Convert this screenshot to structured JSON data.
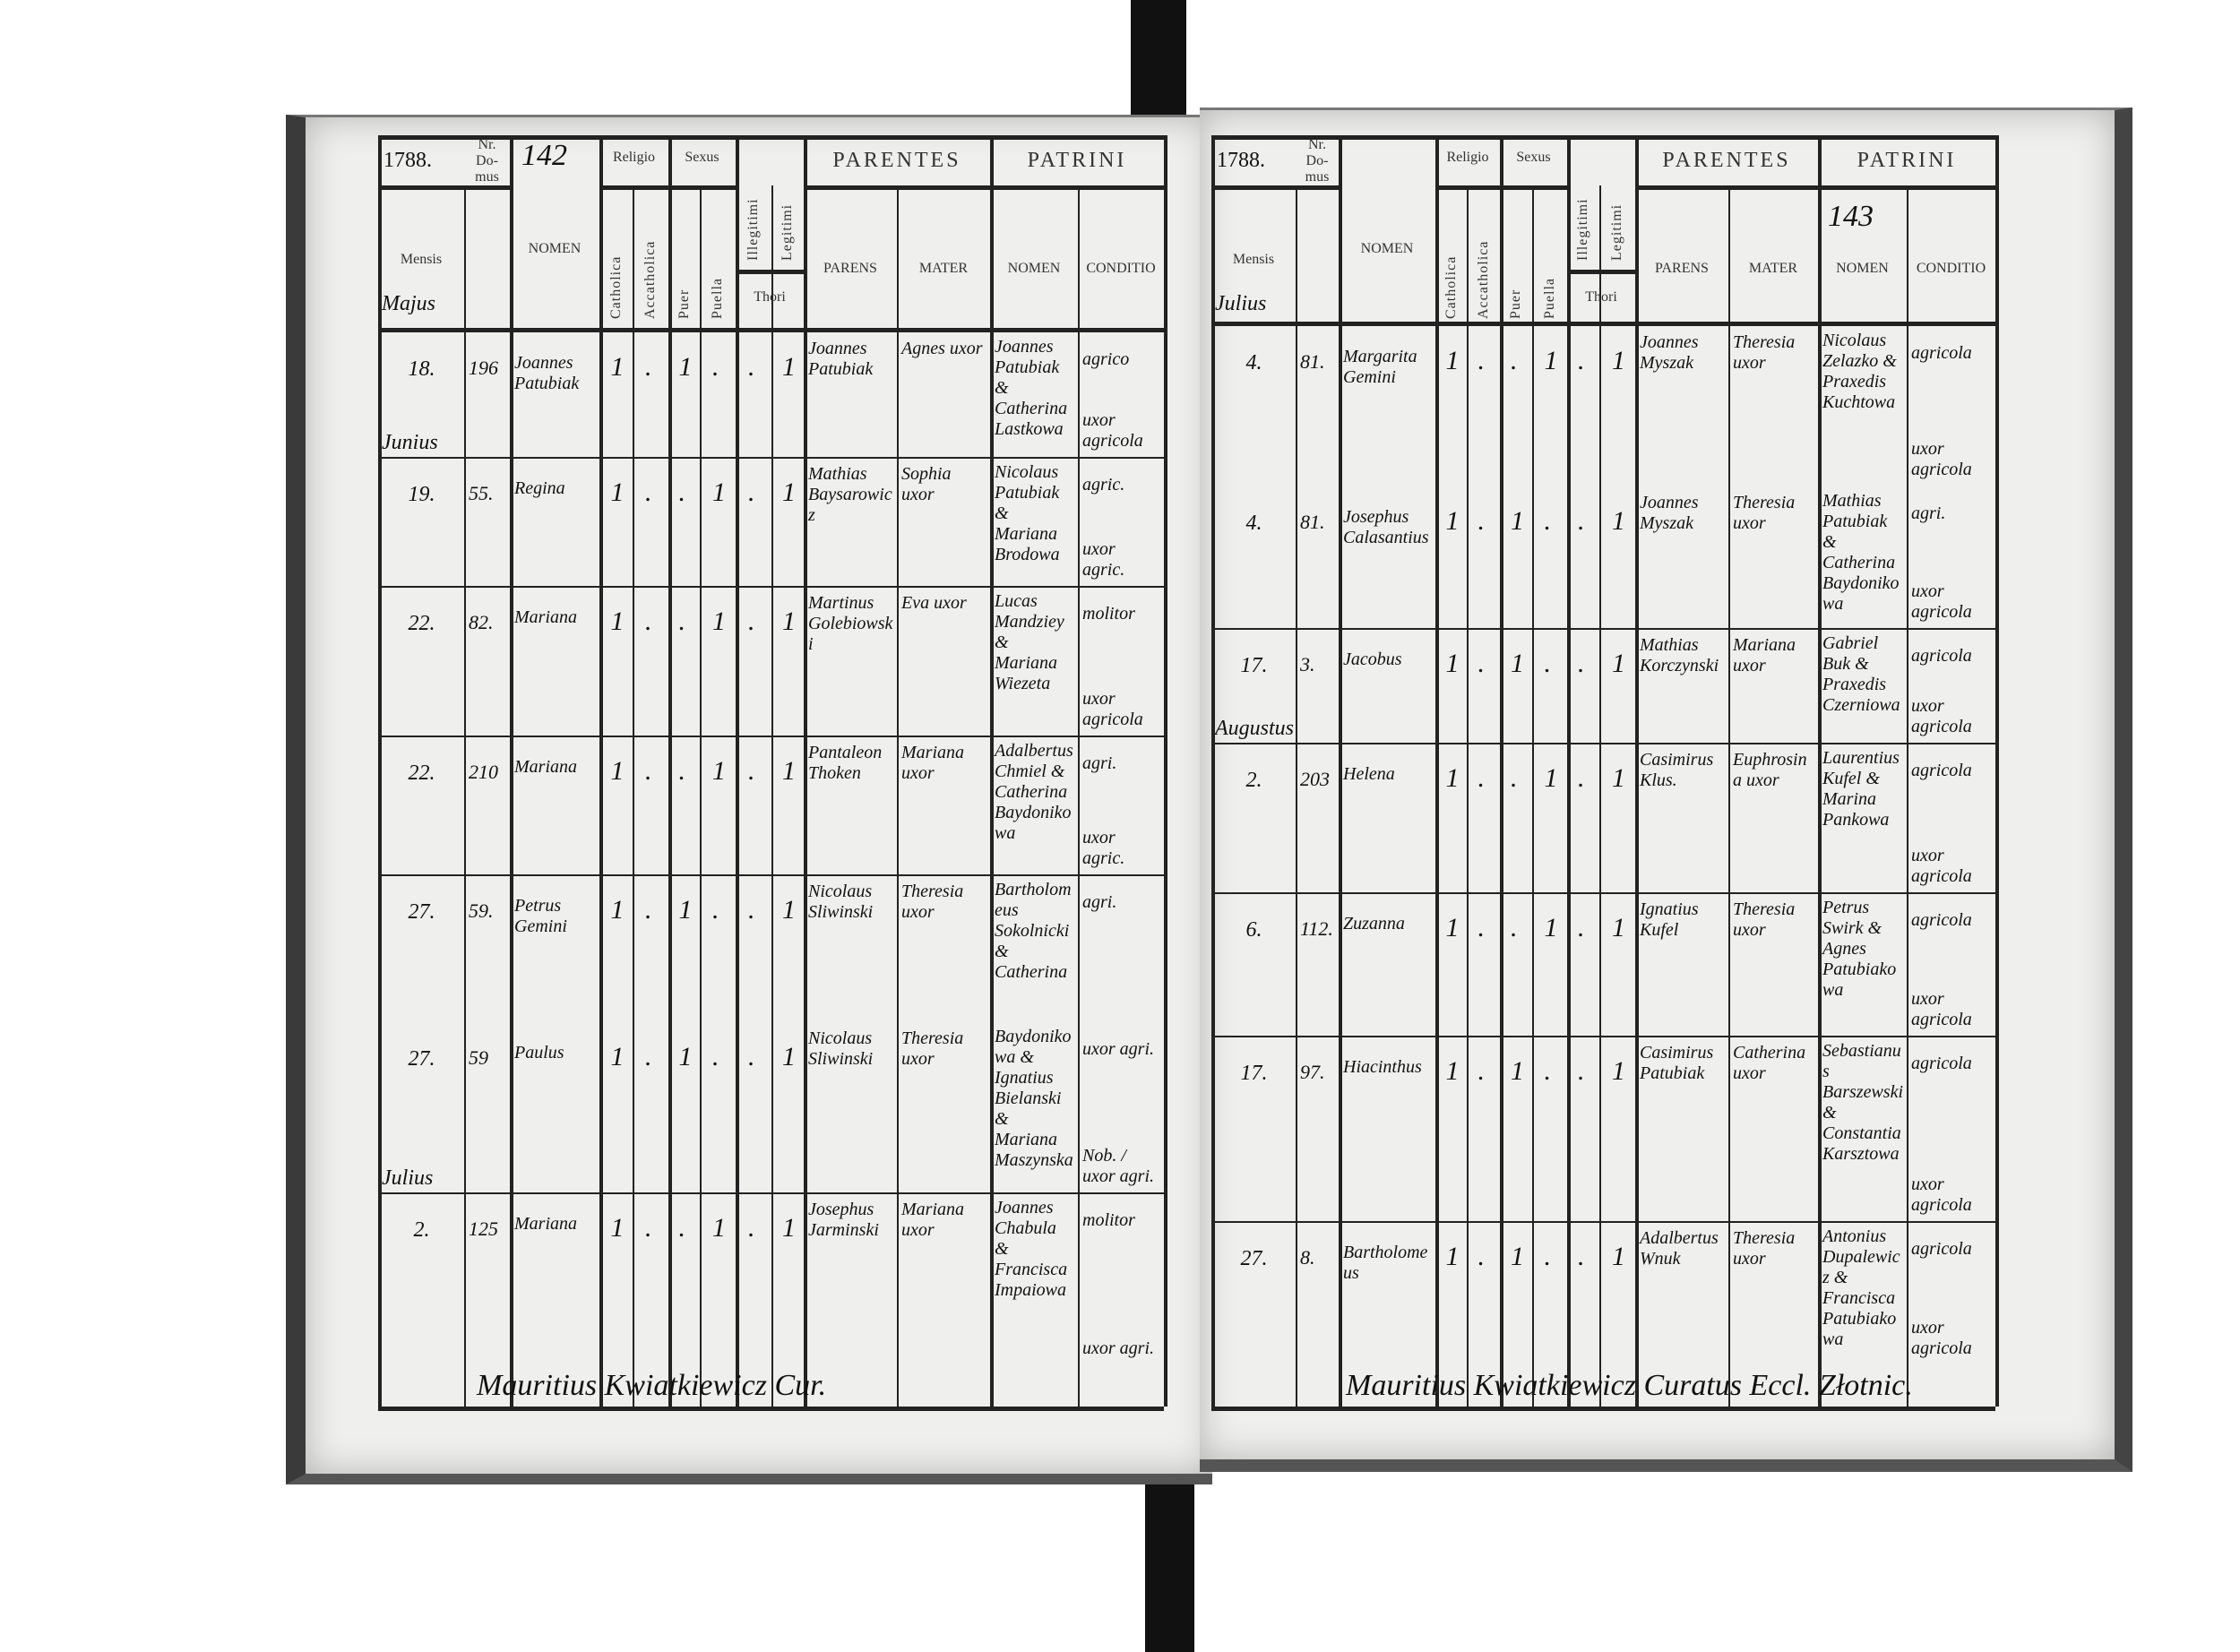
{
  "headers": {
    "nr_domus": "Nr. Do- mus",
    "nomen": "NOMEN",
    "mensis": "Mensis",
    "religio": "Religio",
    "sexus": "Sexus",
    "catholica": "Catholica",
    "accatholica": "Accatholica",
    "puer": "Puer",
    "puella": "Puella",
    "illegitimi": "Illegitimi",
    "legitimi": "Legitimi",
    "thori": "Thori",
    "parentes": "PARENTES",
    "patrini": "PATRINI",
    "parens": "PARENS",
    "mater": "MATER",
    "patrini_nomen": "NOMEN",
    "conditio": "CONDITIO"
  },
  "pages": [
    {
      "year": "1788.",
      "page_number": "142",
      "month_header": "Majus",
      "signature": "Mauritius Kwiatkiewicz Cur.",
      "entries": [
        {
          "month": "",
          "day": "18.",
          "domus": "196",
          "nomen": "Joannes Patubiak",
          "marks": [
            "1",
            ".",
            "1",
            ".",
            ".",
            "1"
          ],
          "parens": "Joannes Patubiak",
          "mater": "Agnes uxor",
          "patrini": "Joannes Patubiak & Catherina Lastkowa",
          "conditio": "agrico",
          "conditio2": "uxor agricola"
        },
        {
          "month": "Junius",
          "day": "19.",
          "domus": "55.",
          "nomen": "Regina",
          "marks": [
            "1",
            ".",
            ".",
            "1",
            ".",
            "1"
          ],
          "parens": "Mathias Baysarowicz",
          "mater": "Sophia uxor",
          "patrini": "Nicolaus Patubiak & Mariana Brodowa",
          "conditio": "agric.",
          "conditio2": "uxor agric."
        },
        {
          "month": "",
          "day": "22.",
          "domus": "82.",
          "nomen": "Mariana",
          "marks": [
            "1",
            ".",
            ".",
            "1",
            ".",
            "1"
          ],
          "parens": "Martinus Golebiowski",
          "mater": "Eva uxor",
          "patrini": "Lucas Mandziey & Mariana Wiezeta",
          "conditio": "molitor",
          "conditio2": "uxor agricola"
        },
        {
          "month": "",
          "day": "22.",
          "domus": "210",
          "nomen": "Mariana",
          "marks": [
            "1",
            ".",
            ".",
            "1",
            ".",
            "1"
          ],
          "parens": "Pantaleon Thoken",
          "mater": "Mariana uxor",
          "patrini": "Adalbertus Chmiel & Catherina Baydonikowa",
          "conditio": "agri.",
          "conditio2": "uxor agric."
        },
        {
          "month": "",
          "day": "27.",
          "domus": "59.",
          "nomen": "Petrus Gemini",
          "marks": [
            "1",
            ".",
            "1",
            ".",
            ".",
            "1"
          ],
          "parens": "Nicolaus Sliwinski",
          "mater": "Theresia uxor",
          "patrini": "Bartholomeus Sokolnicki & Catherina",
          "conditio": "agri.",
          "conditio2": ""
        },
        {
          "month": "",
          "day": "27.",
          "domus": "59",
          "nomen": "Paulus",
          "marks": [
            "1",
            ".",
            "1",
            ".",
            ".",
            "1"
          ],
          "parens": "Nicolaus Sliwinski",
          "mater": "Theresia uxor",
          "patrini": "Baydonikowa & Ignatius Bielanski & Mariana Maszynska",
          "conditio": "uxor agri.",
          "conditio2": "Nob. / uxor agri."
        },
        {
          "month": "Julius",
          "day": "2.",
          "domus": "125",
          "nomen": "Mariana",
          "marks": [
            "1",
            ".",
            ".",
            "1",
            ".",
            "1"
          ],
          "parens": "Josephus Jarminski",
          "mater": "Mariana uxor",
          "patrini": "Joannes Chabula & Francisca Impaiowa",
          "conditio": "molitor",
          "conditio2": "uxor agri."
        }
      ]
    },
    {
      "year": "1788.",
      "page_number": "143",
      "month_header": "Julius",
      "signature": "Mauritius Kwiatkiewicz Curatus Eccl. Złotnic.",
      "entries": [
        {
          "month": "",
          "day": "4.",
          "domus": "81.",
          "nomen": "Margarita Gemini",
          "marks": [
            "1",
            ".",
            ".",
            "1",
            ".",
            "1"
          ],
          "parens": "Joannes Myszak",
          "mater": "Theresia uxor",
          "patrini": "Nicolaus Zelazko & Praxedis Kuchtowa",
          "conditio": "agricola",
          "conditio2": "uxor agricola"
        },
        {
          "month": "",
          "day": "4.",
          "domus": "81.",
          "nomen": "Josephus Calasantius",
          "marks": [
            "1",
            ".",
            "1",
            ".",
            ".",
            "1"
          ],
          "parens": "Joannes Myszak",
          "mater": "Theresia uxor",
          "patrini": "Mathias Patubiak & Catherina Baydonikowa",
          "conditio": "agri.",
          "conditio2": "uxor agricola"
        },
        {
          "month": "",
          "day": "17.",
          "domus": "3.",
          "nomen": "Jacobus",
          "marks": [
            "1",
            ".",
            "1",
            ".",
            ".",
            "1"
          ],
          "parens": "Mathias Korczynski",
          "mater": "Mariana uxor",
          "patrini": "Gabriel Buk & Praxedis Czerniowa",
          "conditio": "agricola",
          "conditio2": "uxor agricola"
        },
        {
          "month": "Augustus",
          "day": "2.",
          "domus": "203",
          "nomen": "Helena",
          "marks": [
            "1",
            ".",
            ".",
            "1",
            ".",
            "1"
          ],
          "parens": "Casimirus Klus.",
          "mater": "Euphrosina uxor",
          "patrini": "Laurentius Kufel & Marina Pankowa",
          "conditio": "agricola",
          "conditio2": "uxor agricola"
        },
        {
          "month": "",
          "day": "6.",
          "domus": "112.",
          "nomen": "Zuzanna",
          "marks": [
            "1",
            ".",
            ".",
            "1",
            ".",
            "1"
          ],
          "parens": "Ignatius Kufel",
          "mater": "Theresia uxor",
          "patrini": "Petrus Swirk & Agnes Patubiakowa",
          "conditio": "agricola",
          "conditio2": "uxor agricola"
        },
        {
          "month": "",
          "day": "17.",
          "domus": "97.",
          "nomen": "Hiacinthus",
          "marks": [
            "1",
            ".",
            "1",
            ".",
            ".",
            "1"
          ],
          "parens": "Casimirus Patubiak",
          "mater": "Catherina uxor",
          "patrini": "Sebastianus Barszewski & Constantia Karsztowa",
          "conditio": "agricola",
          "conditio2": "uxor agricola"
        },
        {
          "month": "",
          "day": "27.",
          "domus": "8.",
          "nomen": "Bartholomeus",
          "marks": [
            "1",
            ".",
            "1",
            ".",
            ".",
            "1"
          ],
          "parens": "Adalbertus Wnuk",
          "mater": "Theresia uxor",
          "patrini": "Antonius Dupalewicz & Francisca Patubiakowa",
          "conditio": "agricola",
          "conditio2": "uxor agricola"
        }
      ]
    }
  ]
}
